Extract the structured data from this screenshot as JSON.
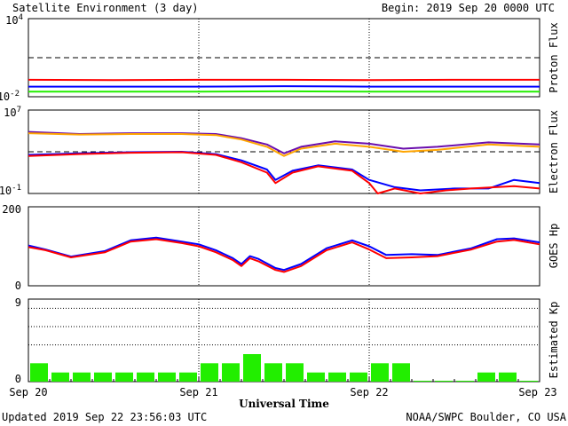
{
  "header": {
    "title": "Satellite Environment (3 day)",
    "begin": "Begin:  2019 Sep 20 0000 UTC"
  },
  "footer": {
    "updated": "Updated 2019 Sep 22 23:56:03 UTC",
    "credit": "NOAA/SWPC Boulder, CO USA"
  },
  "colors": {
    "red": "#ff0000",
    "blue": "#0000ff",
    "green": "#22ee00",
    "orange": "#ffa500",
    "purple": "#6a0dad"
  },
  "chart_data": [
    {
      "type": "line",
      "ylabel": "Proton Flux",
      "yscale": "log",
      "ylim": [
        0.01,
        10000
      ],
      "yticks": [
        {
          "base": "10",
          "exp": "4"
        },
        {
          "base": "10",
          "exp": "-2"
        }
      ],
      "threshold": 10,
      "xlim": [
        0,
        3
      ],
      "series": [
        {
          "color": "#ff0000",
          "x": [
            0,
            0.5,
            1,
            1.5,
            2,
            2.5,
            3
          ],
          "y": [
            0.2,
            0.19,
            0.2,
            0.2,
            0.19,
            0.2,
            0.2
          ]
        },
        {
          "color": "#0000ff",
          "x": [
            0,
            0.5,
            1,
            1.5,
            2,
            2.5,
            3
          ],
          "y": [
            0.06,
            0.06,
            0.06,
            0.065,
            0.06,
            0.06,
            0.06
          ]
        },
        {
          "color": "#22ee00",
          "x": [
            0,
            0.5,
            1,
            1.5,
            2,
            2.5,
            3
          ],
          "y": [
            0.025,
            0.025,
            0.025,
            0.026,
            0.025,
            0.025,
            0.025
          ]
        }
      ]
    },
    {
      "type": "line",
      "ylabel": "Electron Flux",
      "yscale": "log",
      "ylim": [
        0.1,
        10000000
      ],
      "yticks": [
        {
          "base": "10",
          "exp": "7"
        },
        {
          "base": "10",
          "exp": "-1"
        }
      ],
      "threshold": 1000,
      "xlim": [
        0,
        3
      ],
      "series": [
        {
          "color": "#6a0dad",
          "x": [
            0,
            0.3,
            0.6,
            0.9,
            1.1,
            1.25,
            1.4,
            1.5,
            1.6,
            1.8,
            2.0,
            2.2,
            2.4,
            2.7,
            3.0
          ],
          "y": [
            80000,
            50000,
            60000,
            60000,
            50000,
            20000,
            5000,
            700,
            3000,
            10000,
            6000,
            2000,
            3000,
            8000,
            5000
          ]
        },
        {
          "color": "#ffa500",
          "x": [
            0,
            0.3,
            0.6,
            0.9,
            1.1,
            1.25,
            1.4,
            1.5,
            1.6,
            1.8,
            2.0,
            2.2,
            2.4,
            2.7,
            3.0
          ],
          "y": [
            60000,
            45000,
            50000,
            50000,
            40000,
            15000,
            3000,
            400,
            2000,
            6000,
            3000,
            1000,
            1500,
            5000,
            3000
          ]
        },
        {
          "color": "#0000ff",
          "x": [
            0,
            0.3,
            0.6,
            0.9,
            1.1,
            1.25,
            1.4,
            1.45,
            1.55,
            1.7,
            1.9,
            2.0,
            2.15,
            2.3,
            2.5,
            2.7,
            2.85,
            3.0
          ],
          "y": [
            500,
            700,
            900,
            1000,
            600,
            150,
            20,
            2,
            15,
            50,
            20,
            2,
            0.4,
            0.2,
            0.3,
            0.3,
            2,
            1
          ]
        },
        {
          "color": "#ff0000",
          "x": [
            0,
            0.3,
            0.6,
            0.9,
            1.1,
            1.25,
            1.4,
            1.45,
            1.55,
            1.7,
            1.9,
            2.0,
            2.05,
            2.15,
            2.3,
            2.45,
            2.6,
            2.85,
            3.0
          ],
          "y": [
            400,
            600,
            800,
            900,
            500,
            100,
            10,
            1,
            10,
            40,
            15,
            1,
            0.1,
            0.3,
            0.1,
            0.2,
            0.3,
            0.5,
            0.3
          ]
        }
      ]
    },
    {
      "type": "line",
      "ylabel": "GOES Hp",
      "ylim": [
        0,
        200
      ],
      "yticks": [
        "200",
        "0"
      ],
      "xlim": [
        0,
        3
      ],
      "series": [
        {
          "color": "#0000ff",
          "x": [
            0,
            0.1,
            0.25,
            0.45,
            0.6,
            0.75,
            0.9,
            1.0,
            1.1,
            1.2,
            1.25,
            1.3,
            1.35,
            1.45,
            1.5,
            1.6,
            1.75,
            1.9,
            2.0,
            2.1,
            2.25,
            2.4,
            2.6,
            2.75,
            2.85,
            3.0
          ],
          "y": [
            102,
            92,
            74,
            88,
            115,
            122,
            112,
            105,
            90,
            70,
            55,
            75,
            68,
            45,
            40,
            55,
            95,
            115,
            100,
            78,
            80,
            78,
            95,
            118,
            120,
            110
          ]
        },
        {
          "color": "#ff0000",
          "x": [
            0,
            0.1,
            0.25,
            0.45,
            0.6,
            0.75,
            0.9,
            1.0,
            1.1,
            1.2,
            1.25,
            1.3,
            1.35,
            1.45,
            1.5,
            1.6,
            1.75,
            1.9,
            2.0,
            2.1,
            2.25,
            2.4,
            2.6,
            2.75,
            2.85,
            3.0
          ],
          "y": [
            98,
            90,
            72,
            85,
            112,
            118,
            108,
            100,
            85,
            65,
            50,
            70,
            62,
            40,
            35,
            50,
            90,
            110,
            92,
            70,
            72,
            75,
            92,
            112,
            116,
            105
          ]
        }
      ]
    },
    {
      "type": "bar",
      "ylabel": "Estimated Kp",
      "ylim": [
        0,
        9
      ],
      "yticks": [
        "9",
        "0"
      ],
      "gridlines": [
        4,
        6,
        8
      ],
      "values": [
        2,
        1,
        1,
        1,
        1,
        1,
        1,
        1,
        2,
        2,
        3,
        2,
        2,
        1,
        1,
        1,
        2,
        2,
        0.1,
        0.1,
        0.1,
        1,
        1,
        0.1
      ],
      "color": "#22ee00"
    }
  ],
  "xaxis": {
    "label": "Universal Time",
    "ticks": [
      "Sep 20",
      "Sep 21",
      "Sep 22",
      "Sep 23"
    ]
  }
}
